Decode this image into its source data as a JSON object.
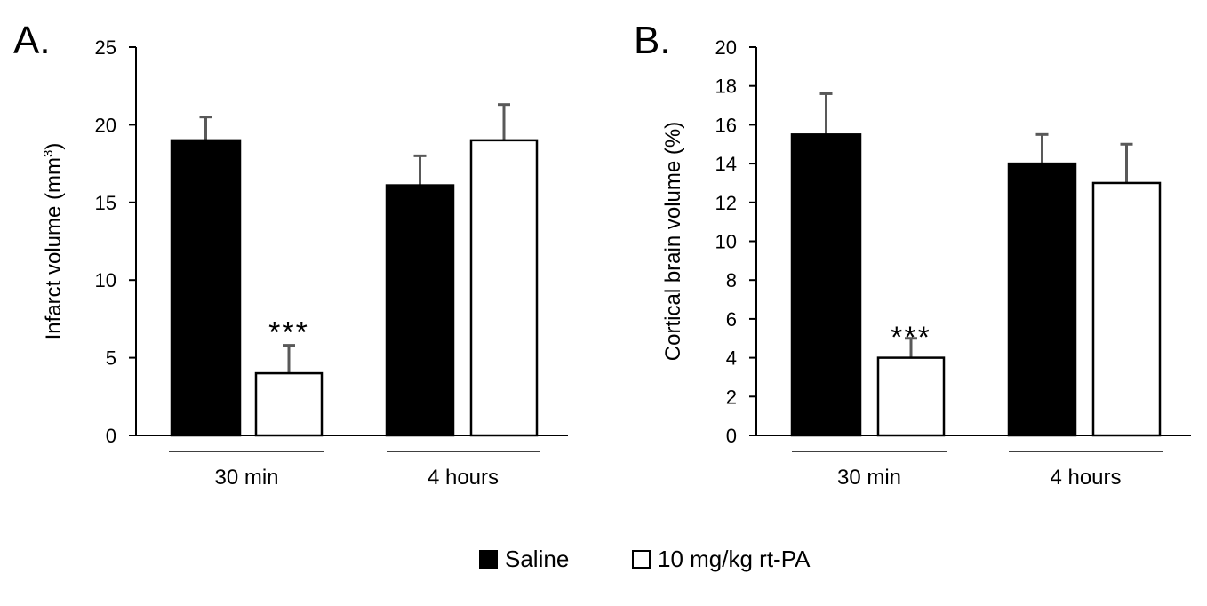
{
  "chart_data": [
    {
      "type": "bar",
      "panel_label": "A.",
      "ylabel": "Infarct volume (mm",
      "ylabel_sup": "3",
      "ylabel_close": ")",
      "ylim": [
        0,
        25
      ],
      "yticks": [
        0,
        5,
        10,
        15,
        20,
        25
      ],
      "categories": [
        "30 min",
        "4 hours"
      ],
      "series": [
        {
          "name": "Saline",
          "values": [
            19.0,
            16.1
          ],
          "errors": [
            1.5,
            1.9
          ]
        },
        {
          "name": "10 mg/kg rt-PA",
          "values": [
            4.0,
            19.0
          ],
          "errors": [
            1.8,
            2.3
          ]
        }
      ],
      "annotations": [
        {
          "text": "***",
          "category": "30 min",
          "series": "10 mg/kg rt-PA"
        }
      ]
    },
    {
      "type": "bar",
      "panel_label": "B.",
      "ylabel": "Cortical brain volume (%)",
      "ylim": [
        0,
        20
      ],
      "yticks": [
        0,
        2,
        4,
        6,
        8,
        10,
        12,
        14,
        16,
        18,
        20
      ],
      "categories": [
        "30 min",
        "4 hours"
      ],
      "series": [
        {
          "name": "Saline",
          "values": [
            15.5,
            14.0
          ],
          "errors": [
            2.1,
            1.5
          ]
        },
        {
          "name": "10 mg/kg rt-PA",
          "values": [
            4.0,
            13.0
          ],
          "errors": [
            1.0,
            2.0
          ]
        }
      ],
      "annotations": [
        {
          "text": "***",
          "category": "30 min",
          "series": "10 mg/kg rt-PA"
        }
      ]
    }
  ],
  "legend": {
    "placement": "bottom-center",
    "items": [
      "Saline",
      "10 mg/kg rt-PA"
    ]
  },
  "colors": {
    "Saline": "#000000",
    "10 mg/kg rt-PA": "#ffffff",
    "error": "#595959"
  }
}
